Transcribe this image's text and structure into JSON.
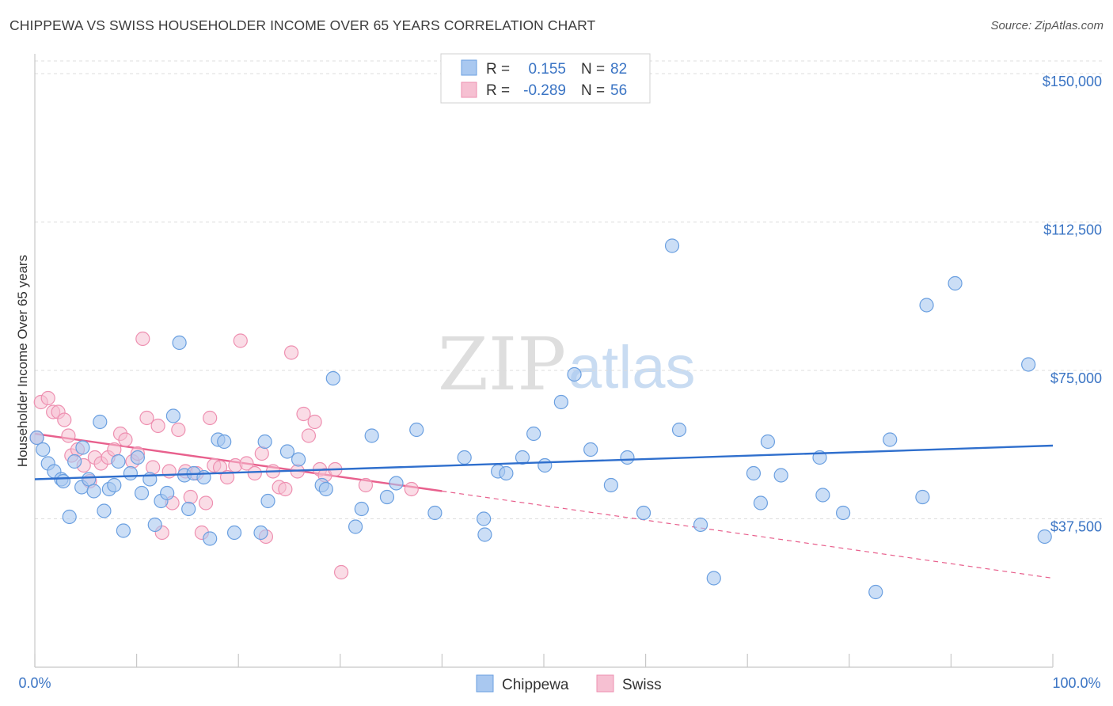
{
  "header": {
    "title": "CHIPPEWA VS SWISS HOUSEHOLDER INCOME OVER 65 YEARS CORRELATION CHART",
    "source": "Source: ZipAtlas.com"
  },
  "watermark": {
    "zip": "ZIP",
    "atlas": "atlas"
  },
  "legend_top": {
    "rows": [
      {
        "r_label": "R =",
        "r_value": "0.155",
        "n_label": "N =",
        "n_value": "82"
      },
      {
        "r_label": "R =",
        "r_value": "-0.289",
        "n_label": "N =",
        "n_value": "56"
      }
    ]
  },
  "legend_bottom": {
    "items": [
      "Chippewa",
      "Swiss"
    ]
  },
  "colors": {
    "chippewa_fill": "#a9c8f0",
    "chippewa_stroke": "#6a9fe0",
    "chippewa_line": "#2f6fcd",
    "swiss_fill": "#f6c0d2",
    "swiss_stroke": "#ee8fb0",
    "swiss_line": "#e8608d",
    "tick_text": "#3a74c4",
    "grid": "#dcdcdc"
  },
  "chart_data": {
    "type": "scatter",
    "title": "CHIPPEWA VS SWISS HOUSEHOLDER INCOME OVER 65 YEARS CORRELATION CHART",
    "xlabel": "",
    "ylabel": "Householder Income Over 65 years",
    "xlim": [
      0,
      100
    ],
    "ylim": [
      0,
      155000
    ],
    "x_tick_labels": [
      "0.0%",
      "100.0%"
    ],
    "y_ticks": [
      37500,
      75000,
      112500,
      150000
    ],
    "y_tick_labels": [
      "$37,500",
      "$75,000",
      "$112,500",
      "$150,000"
    ],
    "grid": true,
    "legend_position": "top-center",
    "series": [
      {
        "name": "Chippewa",
        "trend": {
          "x": [
            0,
            100
          ],
          "y": [
            47500,
            56000
          ]
        },
        "points": [
          [
            0.2,
            58000
          ],
          [
            0.8,
            55000
          ],
          [
            1.3,
            51500
          ],
          [
            1.9,
            49500
          ],
          [
            2.6,
            47500
          ],
          [
            2.8,
            47000
          ],
          [
            3.4,
            38000
          ],
          [
            3.9,
            52000
          ],
          [
            4.6,
            45500
          ],
          [
            4.7,
            55500
          ],
          [
            5.3,
            47500
          ],
          [
            5.8,
            44500
          ],
          [
            6.4,
            62000
          ],
          [
            6.8,
            39500
          ],
          [
            7.3,
            45000
          ],
          [
            7.8,
            46000
          ],
          [
            8.2,
            52000
          ],
          [
            8.7,
            34500
          ],
          [
            9.4,
            49000
          ],
          [
            10.1,
            53000
          ],
          [
            10.5,
            44000
          ],
          [
            11.3,
            47500
          ],
          [
            11.8,
            36000
          ],
          [
            12.4,
            42000
          ],
          [
            13.0,
            44000
          ],
          [
            13.6,
            63500
          ],
          [
            14.2,
            82000
          ],
          [
            14.7,
            48500
          ],
          [
            15.1,
            40000
          ],
          [
            15.6,
            49000
          ],
          [
            16.6,
            48000
          ],
          [
            17.2,
            32500
          ],
          [
            18.0,
            57500
          ],
          [
            18.6,
            57000
          ],
          [
            19.6,
            34000
          ],
          [
            22.2,
            34000
          ],
          [
            22.6,
            57000
          ],
          [
            22.9,
            42000
          ],
          [
            24.8,
            54500
          ],
          [
            25.9,
            52500
          ],
          [
            28.2,
            46000
          ],
          [
            28.6,
            45000
          ],
          [
            29.3,
            73000
          ],
          [
            32.1,
            40000
          ],
          [
            31.5,
            35500
          ],
          [
            33.1,
            58500
          ],
          [
            34.6,
            43000
          ],
          [
            37.5,
            60000
          ],
          [
            39.3,
            39000
          ],
          [
            42.2,
            53000
          ],
          [
            44.1,
            37500
          ],
          [
            44.2,
            33500
          ],
          [
            45.5,
            49500
          ],
          [
            46.3,
            49000
          ],
          [
            47.9,
            53000
          ],
          [
            49.0,
            59000
          ],
          [
            50.1,
            51000
          ],
          [
            51.7,
            67000
          ],
          [
            53.0,
            74000
          ],
          [
            54.6,
            55000
          ],
          [
            56.6,
            46000
          ],
          [
            58.2,
            53000
          ],
          [
            59.8,
            39000
          ],
          [
            62.6,
            106500
          ],
          [
            63.3,
            60000
          ],
          [
            65.4,
            36000
          ],
          [
            66.7,
            22500
          ],
          [
            70.6,
            49000
          ],
          [
            71.3,
            41500
          ],
          [
            73.3,
            48500
          ],
          [
            77.1,
            53000
          ],
          [
            77.4,
            43500
          ],
          [
            79.4,
            39000
          ],
          [
            82.6,
            19000
          ],
          [
            84.0,
            57500
          ],
          [
            87.2,
            43000
          ],
          [
            87.6,
            91500
          ],
          [
            90.4,
            97000
          ],
          [
            97.6,
            76500
          ],
          [
            99.2,
            33000
          ],
          [
            72.0,
            57000
          ],
          [
            35.5,
            46500
          ]
        ]
      },
      {
        "name": "Swiss",
        "trend": {
          "x": [
            0,
            40,
            100
          ],
          "y": [
            59000,
            44500,
            22500
          ]
        },
        "points": [
          [
            0.2,
            58000
          ],
          [
            0.6,
            67000
          ],
          [
            1.3,
            68000
          ],
          [
            1.8,
            64500
          ],
          [
            2.3,
            64500
          ],
          [
            2.9,
            62500
          ],
          [
            3.3,
            58500
          ],
          [
            3.6,
            53500
          ],
          [
            4.2,
            55000
          ],
          [
            4.8,
            51000
          ],
          [
            5.4,
            47000
          ],
          [
            5.9,
            53000
          ],
          [
            6.5,
            51500
          ],
          [
            7.2,
            53000
          ],
          [
            7.8,
            55000
          ],
          [
            8.4,
            59000
          ],
          [
            8.9,
            57500
          ],
          [
            9.6,
            52000
          ],
          [
            10.1,
            54000
          ],
          [
            10.6,
            83000
          ],
          [
            11.0,
            63000
          ],
          [
            11.6,
            50500
          ],
          [
            12.1,
            61000
          ],
          [
            12.5,
            34000
          ],
          [
            13.2,
            49500
          ],
          [
            13.5,
            41500
          ],
          [
            14.1,
            60000
          ],
          [
            14.8,
            49500
          ],
          [
            15.3,
            43000
          ],
          [
            15.9,
            49000
          ],
          [
            16.4,
            34000
          ],
          [
            16.8,
            41500
          ],
          [
            17.2,
            63000
          ],
          [
            17.6,
            51000
          ],
          [
            18.2,
            50500
          ],
          [
            18.9,
            48000
          ],
          [
            19.7,
            51000
          ],
          [
            20.2,
            82500
          ],
          [
            20.8,
            51500
          ],
          [
            21.6,
            49000
          ],
          [
            22.3,
            54000
          ],
          [
            22.7,
            33000
          ],
          [
            23.4,
            49500
          ],
          [
            24.0,
            45500
          ],
          [
            24.6,
            45000
          ],
          [
            25.2,
            79500
          ],
          [
            25.8,
            49500
          ],
          [
            26.4,
            64000
          ],
          [
            26.9,
            58500
          ],
          [
            27.5,
            62000
          ],
          [
            28.0,
            50000
          ],
          [
            28.5,
            48500
          ],
          [
            29.5,
            50000
          ],
          [
            30.1,
            24000
          ],
          [
            32.5,
            46000
          ],
          [
            37.0,
            45000
          ]
        ]
      }
    ]
  }
}
